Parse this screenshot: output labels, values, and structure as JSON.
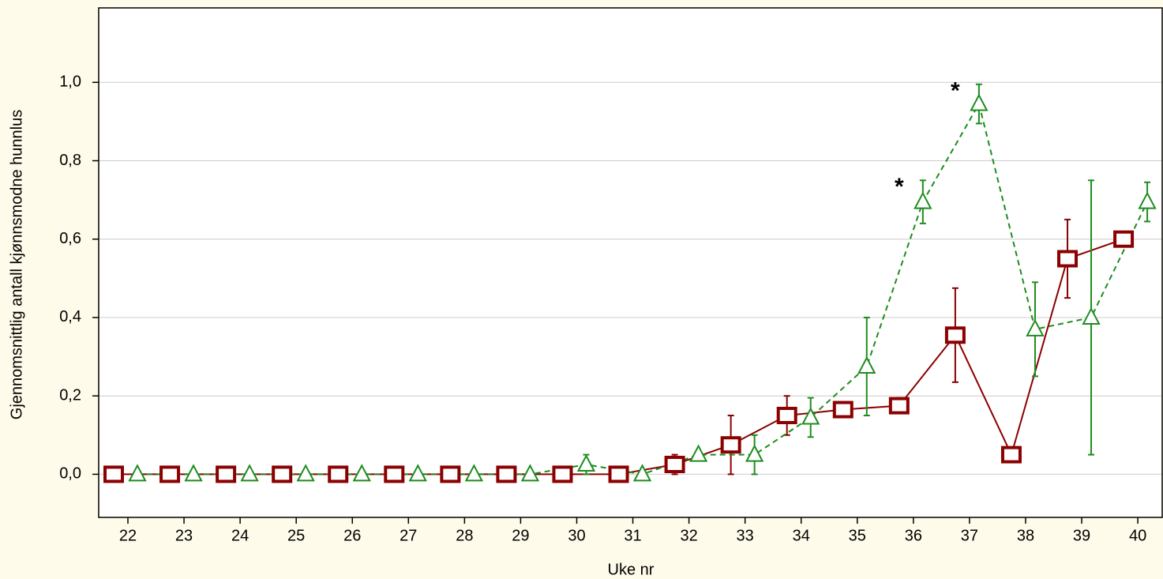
{
  "chart_data": {
    "type": "line",
    "y_label": "Gjennomsnittlig antall kjønnsmodne hunnlus",
    "x_label": "Uke nr",
    "categories": [
      "22",
      "23",
      "24",
      "25",
      "26",
      "27",
      "28",
      "29",
      "30",
      "31",
      "32",
      "33",
      "34",
      "35",
      "36",
      "37",
      "38",
      "39",
      "40"
    ],
    "ylim": [
      -0.11,
      1.19
    ],
    "yticks": [
      {
        "value": 0,
        "label": "0,0"
      },
      {
        "value": 0.2,
        "label": "0,2"
      },
      {
        "value": 0.4,
        "label": "0,4"
      },
      {
        "value": 0.6,
        "label": "0,6"
      },
      {
        "value": 0.8,
        "label": "0,8"
      },
      {
        "value": 1.0,
        "label": "1,0"
      }
    ],
    "grid": true,
    "series": [
      {
        "color": "#8b0000",
        "marker": "square",
        "dash": false,
        "values": [
          0,
          0,
          0,
          0,
          0,
          0,
          0,
          0,
          0,
          0,
          0.025,
          0.075,
          0.15,
          0.165,
          0.175,
          0.355,
          0.05,
          0.55,
          0.6
        ],
        "errors": [
          0,
          0,
          0,
          0,
          0,
          0,
          0,
          0,
          0,
          0,
          0.025,
          0.075,
          0.05,
          0.01,
          0.02,
          0.12,
          0,
          0.1,
          0
        ]
      },
      {
        "color": "#1e8c1e",
        "marker": "triangle",
        "dash": true,
        "values": [
          0,
          0,
          0,
          0,
          0,
          0,
          0,
          0,
          0.025,
          0,
          0.05,
          0.05,
          0.145,
          0.275,
          0.695,
          0.945,
          0.37,
          0.4,
          0.695
        ],
        "errors": [
          0,
          0,
          0,
          0,
          0,
          0,
          0,
          0,
          0.025,
          0,
          0,
          0.05,
          0.05,
          0.125,
          0.055,
          0.05,
          0.12,
          0.35,
          0.05
        ]
      }
    ],
    "annotations": [
      {
        "text": "*",
        "x": "36",
        "series": 1
      },
      {
        "text": "*",
        "x": "37",
        "series": 1
      }
    ]
  }
}
